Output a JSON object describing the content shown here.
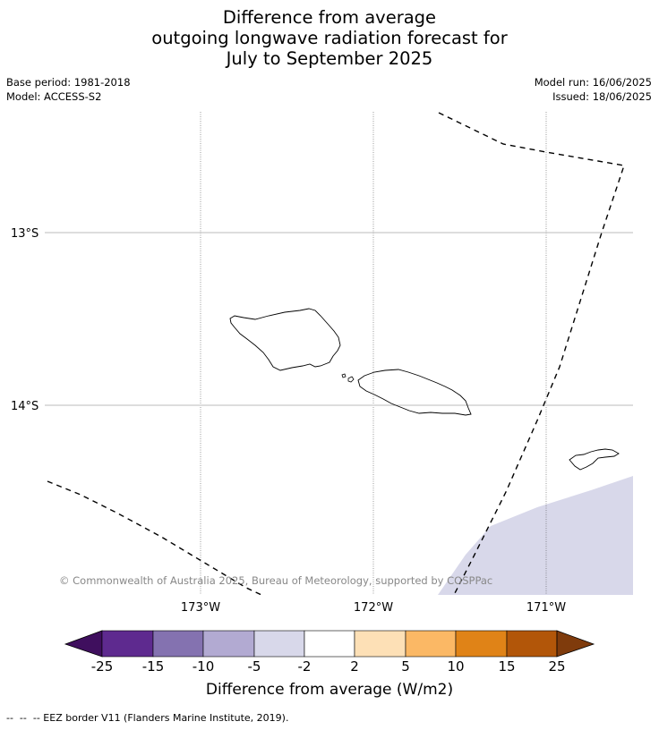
{
  "title": {
    "line1": "Difference from average",
    "line2": "outgoing longwave radiation forecast for",
    "line3": "July to September 2025"
  },
  "meta_left": {
    "base_period": "Base period: 1981-2018",
    "model": "Model: ACCESS-S2"
  },
  "meta_right": {
    "model_run": "Model run: 16/06/2025",
    "issued": "Issued: 18/06/2025"
  },
  "map": {
    "lat_labels": [
      "13°S",
      "14°S"
    ],
    "lon_labels": [
      "173°W",
      "172°W",
      "171°W"
    ],
    "copyright": "© Commonwealth of Australia 2025, Bureau of Meteorology, supported by COSPPac",
    "anomaly_fill_color": "#d8d8ea",
    "eez_line_style": "dashed"
  },
  "colorbar": {
    "label": "Difference from average (W/m2)",
    "ticks": [
      "-25",
      "-15",
      "-10",
      "-5",
      "-2",
      "2",
      "5",
      "10",
      "15",
      "25"
    ],
    "low_extend_color": "#3f0f5e",
    "high_extend_color": "#7f3b0c",
    "bins": [
      {
        "color": "#5e2a8f"
      },
      {
        "color": "#8472b0"
      },
      {
        "color": "#b2aad2"
      },
      {
        "color": "#d8d8ea"
      },
      {
        "color": "#ffffff"
      },
      {
        "color": "#fde0b6"
      },
      {
        "color": "#fbb865"
      },
      {
        "color": "#e08317"
      },
      {
        "color": "#b25609"
      }
    ]
  },
  "footnote": "--  --  -- EEZ border V11 (Flanders Marine Institute, 2019)."
}
